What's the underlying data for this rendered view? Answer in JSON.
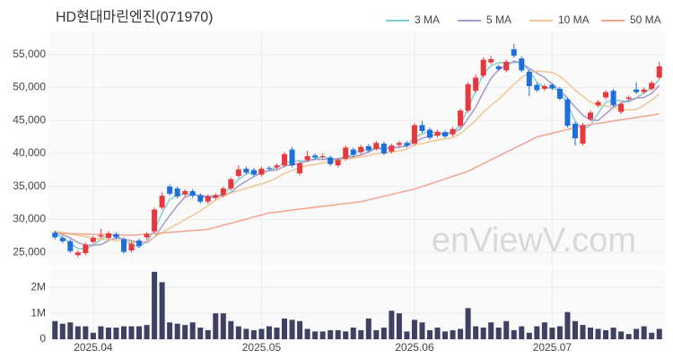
{
  "chart_data": [
    {
      "type": "candlestick",
      "title": "HD현대마린엔진(071970)",
      "watermark": "enViewV.com",
      "categories": [
        null,
        null,
        null,
        null,
        null,
        "2025.04",
        null,
        null,
        null,
        null,
        null,
        null,
        null,
        null,
        null,
        null,
        null,
        null,
        null,
        null,
        null,
        null,
        null,
        null,
        null,
        null,
        null,
        "2025.05",
        null,
        null,
        null,
        null,
        null,
        null,
        null,
        null,
        null,
        null,
        null,
        null,
        null,
        null,
        null,
        null,
        null,
        null,
        null,
        "2025.06",
        null,
        null,
        null,
        null,
        null,
        null,
        null,
        null,
        null,
        null,
        null,
        null,
        null,
        null,
        null,
        null,
        null,
        "2025.07",
        null,
        null,
        null,
        null,
        null,
        null,
        null,
        null,
        null,
        null,
        null,
        null,
        null,
        null
      ],
      "open": [
        28000,
        27200,
        26700,
        24600,
        24900,
        26600,
        27400,
        27200,
        27800,
        27000,
        25300,
        26800,
        27300,
        28200,
        31800,
        35000,
        34700,
        33800,
        34300,
        33700,
        32700,
        33300,
        33700,
        34700,
        36600,
        37700,
        37500,
        36800,
        37800,
        37900,
        38200,
        40600,
        37000,
        39000,
        39700,
        39500,
        39400,
        38200,
        39200,
        40600,
        40200,
        41100,
        40700,
        41500,
        40300,
        41300,
        41600,
        41500,
        44300,
        43600,
        42700,
        43200,
        42900,
        44200,
        46500,
        49500,
        51800,
        53800,
        53200,
        52600,
        55800,
        54400,
        52400,
        50400,
        49800,
        50400,
        49800,
        48200,
        44500,
        41500,
        45200,
        47300,
        48500,
        49500,
        46300,
        48300,
        49700,
        49300,
        49800,
        51500
      ],
      "high": [
        28300,
        27500,
        27000,
        25300,
        26500,
        27500,
        28600,
        28200,
        28100,
        27300,
        26600,
        27100,
        28100,
        31800,
        34100,
        35300,
        35000,
        34600,
        34600,
        34000,
        33800,
        34000,
        35000,
        36400,
        38200,
        38000,
        37800,
        38000,
        38100,
        38500,
        40200,
        41000,
        38800,
        40400,
        40000,
        40000,
        39700,
        39300,
        41200,
        40900,
        41300,
        41400,
        41900,
        41800,
        41500,
        41900,
        41900,
        44600,
        44900,
        43900,
        43600,
        43500,
        44000,
        46800,
        50800,
        52000,
        54600,
        54800,
        53500,
        54200,
        56600,
        54700,
        52700,
        50700,
        50500,
        50700,
        50100,
        48500,
        44800,
        44600,
        46500,
        48100,
        49600,
        49800,
        47800,
        48800,
        50800,
        50000,
        51000,
        53900
      ],
      "low": [
        27000,
        26400,
        24900,
        24300,
        24600,
        26300,
        27100,
        26900,
        27000,
        24800,
        25000,
        25700,
        27000,
        27900,
        31500,
        33600,
        33200,
        33500,
        33300,
        32400,
        32400,
        33000,
        33400,
        34400,
        36300,
        36800,
        36500,
        36500,
        37400,
        37600,
        37900,
        37900,
        36700,
        38700,
        39100,
        39200,
        38100,
        37900,
        38900,
        39500,
        39900,
        40200,
        40400,
        39700,
        40000,
        41000,
        40900,
        41200,
        43100,
        42100,
        42400,
        42300,
        42600,
        43900,
        46200,
        49200,
        51500,
        53500,
        52500,
        52300,
        54500,
        52300,
        48700,
        49300,
        49500,
        49600,
        48000,
        43900,
        41200,
        41200,
        44900,
        47000,
        48200,
        47000,
        46000,
        48000,
        49000,
        49000,
        49500,
        51200
      ],
      "close": [
        27300,
        26700,
        25200,
        25000,
        26200,
        27200,
        27600,
        27900,
        27300,
        25100,
        26300,
        26000,
        27800,
        31500,
        33600,
        33900,
        33500,
        34300,
        33600,
        32700,
        33500,
        33700,
        34700,
        36100,
        37600,
        37100,
        36800,
        37700,
        37700,
        38200,
        39900,
        38200,
        38500,
        39600,
        39400,
        39600,
        38400,
        39000,
        40900,
        39800,
        41000,
        40500,
        41600,
        40000,
        41200,
        41600,
        41200,
        44300,
        43400,
        42400,
        43300,
        42600,
        43700,
        46500,
        50500,
        51500,
        54200,
        54300,
        52800,
        53900,
        54800,
        52600,
        50200,
        49600,
        50200,
        49900,
        48300,
        44200,
        42300,
        44300,
        46200,
        47800,
        49300,
        47300,
        47500,
        48500,
        49300,
        49700,
        50700,
        53200
      ],
      "up_color": "#e8383d",
      "down_color": "#1e6fdc",
      "series": [
        {
          "name": "3 MA",
          "color": "#7fd0d0",
          "values": [
            27800,
            27300,
            26400,
            25600,
            25500,
            26100,
            27000,
            27600,
            27600,
            26800,
            26200,
            25800,
            26700,
            28400,
            31000,
            33000,
            33700,
            33900,
            33800,
            33500,
            33300,
            33300,
            34000,
            34800,
            36100,
            36900,
            37200,
            37200,
            37400,
            37900,
            38600,
            38800,
            38900,
            38800,
            39200,
            39500,
            39100,
            39000,
            39400,
            39900,
            40600,
            40400,
            41000,
            40700,
            40900,
            40900,
            41300,
            42400,
            43000,
            43400,
            43000,
            42800,
            43200,
            44300,
            46900,
            49500,
            52100,
            53300,
            53800,
            53700,
            53800,
            53800,
            52500,
            50800,
            50000,
            49900,
            49500,
            47500,
            44900,
            43600,
            44300,
            46100,
            47800,
            48100,
            48000,
            47800,
            48400,
            49200,
            49900,
            51200
          ]
        },
        {
          "name": "5 MA",
          "color": "#a89bcb",
          "values": [
            28000,
            27700,
            27200,
            26500,
            26100,
            26100,
            26200,
            26800,
            27200,
            27000,
            26800,
            26500,
            26500,
            27300,
            29000,
            30600,
            32100,
            33400,
            33800,
            33600,
            33500,
            33600,
            33600,
            34100,
            35100,
            35800,
            36500,
            37100,
            37400,
            37500,
            38100,
            38300,
            38500,
            38900,
            39100,
            39100,
            39100,
            39200,
            39500,
            39500,
            39800,
            40200,
            40800,
            40600,
            40900,
            41000,
            41100,
            41700,
            42300,
            42600,
            42900,
            43200,
            43100,
            43700,
            45300,
            47000,
            49300,
            51400,
            52700,
            53300,
            54000,
            53700,
            52900,
            52200,
            51500,
            50500,
            49600,
            48400,
            47000,
            45800,
            45100,
            45000,
            46000,
            47000,
            47600,
            48100,
            48400,
            48500,
            49100,
            50300
          ]
        },
        {
          "name": "10 MA",
          "color": "#f3c592",
          "values": [
            28200,
            28000,
            27800,
            27600,
            27400,
            27200,
            27000,
            26900,
            26800,
            26700,
            26500,
            26400,
            26700,
            27300,
            28000,
            28700,
            29300,
            30000,
            30600,
            31300,
            32100,
            32900,
            33500,
            34000,
            34400,
            34700,
            35100,
            35400,
            35800,
            36300,
            37000,
            37400,
            37800,
            38200,
            38300,
            38600,
            38700,
            38900,
            39200,
            39300,
            39500,
            39700,
            40000,
            40100,
            40200,
            40400,
            40700,
            41300,
            41500,
            41800,
            42000,
            42200,
            42400,
            43000,
            44000,
            45000,
            46300,
            47300,
            48200,
            49300,
            50500,
            51500,
            52200,
            52500,
            52400,
            52300,
            51700,
            50700,
            49600,
            48700,
            47800,
            47300,
            47200,
            47000,
            46700,
            46600,
            46700,
            47300,
            48100,
            49000
          ]
        },
        {
          "name": "50 MA",
          "color": "#f4a48e",
          "values": [
            27900,
            27870,
            27840,
            27810,
            27780,
            27750,
            27720,
            27690,
            27660,
            27630,
            27600,
            27690,
            27780,
            27870,
            27960,
            28050,
            28140,
            28230,
            28320,
            28410,
            28500,
            28810,
            29130,
            29440,
            29750,
            30060,
            30380,
            30690,
            31000,
            31140,
            31280,
            31430,
            31570,
            31710,
            31850,
            31990,
            32130,
            32280,
            32420,
            32560,
            32700,
            32970,
            33240,
            33510,
            33790,
            34060,
            34330,
            34600,
            34990,
            35370,
            35760,
            36140,
            36530,
            36910,
            37300,
            37880,
            38460,
            39030,
            39610,
            40190,
            40770,
            41340,
            41920,
            42500,
            42780,
            43070,
            43350,
            43630,
            43920,
            44200,
            44380,
            44560,
            44740,
            44920,
            45100,
            45280,
            45460,
            45640,
            45820,
            46000
          ]
        }
      ],
      "ylim": [
        23000,
        58500
      ],
      "yticks": [
        {
          "value": 25000,
          "label": "25,000"
        },
        {
          "value": 30000,
          "label": "30,000"
        },
        {
          "value": 35000,
          "label": "35,000"
        },
        {
          "value": 40000,
          "label": "40,000"
        },
        {
          "value": 45000,
          "label": "45,000"
        },
        {
          "value": 50000,
          "label": "50,000"
        },
        {
          "value": 55000,
          "label": "55,000"
        }
      ],
      "grid": true,
      "legend": "top-right"
    },
    {
      "type": "bar",
      "color": "#3e4064",
      "values": [
        700000,
        600000,
        650000,
        500000,
        500000,
        250000,
        500000,
        450000,
        450000,
        500000,
        500000,
        500000,
        550000,
        2600000,
        2200000,
        650000,
        600000,
        550000,
        650000,
        450000,
        350000,
        1000000,
        1000000,
        700000,
        500000,
        400000,
        350000,
        400000,
        500000,
        450000,
        800000,
        750000,
        700000,
        400000,
        300000,
        300000,
        350000,
        350000,
        300000,
        450000,
        350000,
        800000,
        350000,
        450000,
        1100000,
        1000000,
        300000,
        750000,
        650000,
        350000,
        450000,
        300000,
        350000,
        400000,
        1200000,
        500000,
        450000,
        650000,
        450000,
        700000,
        350000,
        500000,
        250000,
        500000,
        650000,
        450000,
        500000,
        1050000,
        700000,
        550000,
        450000,
        400000,
        350000,
        450000,
        300000,
        200000,
        400000,
        500000,
        250000,
        400000
      ],
      "ylim": [
        0,
        2700000
      ],
      "yticks": [
        0,
        {
          "value": 1000000,
          "label": "1M"
        },
        {
          "value": 2000000,
          "label": "2M"
        }
      ],
      "grid": true
    }
  ]
}
